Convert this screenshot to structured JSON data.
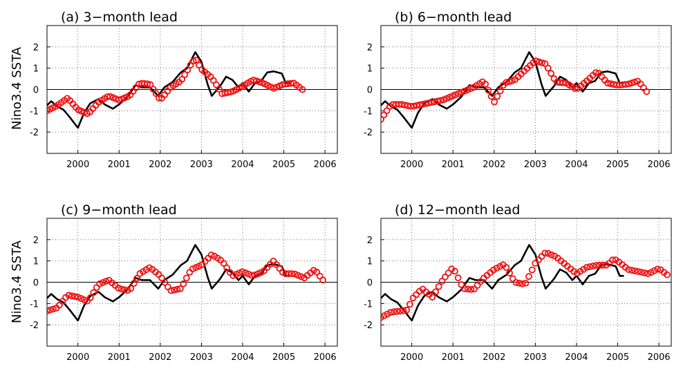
{
  "chart_data": {
    "type": "line",
    "ylabel": "Nino3.4  SSTA",
    "xlim": [
      1999.25,
      2006.3
    ],
    "ylim": [
      -3,
      3
    ],
    "xticks": [
      2000,
      2001,
      2002,
      2003,
      2004,
      2005,
      2006
    ],
    "yticks": [
      -2,
      -1,
      0,
      1,
      2
    ],
    "grid": true,
    "zero_line": true,
    "colors": {
      "observed": "#000000",
      "forecast": "#ee1111"
    },
    "observed": {
      "x": [
        1999.25,
        1999.35,
        1999.5,
        1999.65,
        1999.8,
        2000.0,
        2000.15,
        2000.3,
        2000.5,
        2000.65,
        2000.85,
        2001.0,
        2001.2,
        2001.4,
        2001.55,
        2001.75,
        2001.95,
        2002.1,
        2002.3,
        2002.5,
        2002.65,
        2002.85,
        2003.0,
        2003.15,
        2003.25,
        2003.45,
        2003.6,
        2003.75,
        2003.9,
        2004.0,
        2004.15,
        2004.3,
        2004.45,
        2004.6,
        2004.75,
        2004.95,
        2005.05,
        2005.15
      ],
      "y": [
        -0.75,
        -0.55,
        -0.8,
        -0.95,
        -1.3,
        -1.8,
        -1.1,
        -0.65,
        -0.45,
        -0.7,
        -0.9,
        -0.7,
        -0.35,
        0.2,
        0.1,
        0.1,
        -0.3,
        0.1,
        0.35,
        0.8,
        1.0,
        1.75,
        1.3,
        0.25,
        -0.3,
        0.15,
        0.6,
        0.45,
        0.1,
        0.3,
        -0.1,
        0.3,
        0.4,
        0.8,
        0.85,
        0.75,
        0.3,
        0.3
      ]
    },
    "panels": [
      {
        "title": "(a) 3−month lead",
        "forecast": {
          "x": [
            1999.25,
            1999.5,
            1999.75,
            2000.0,
            2000.25,
            2000.5,
            2000.75,
            2001.0,
            2001.25,
            2001.5,
            2001.75,
            2002.0,
            2002.25,
            2002.5,
            2002.75,
            2002.85,
            2003.0,
            2003.25,
            2003.5,
            2003.75,
            2004.0,
            2004.25,
            2004.5,
            2004.75,
            2005.0,
            2005.25,
            2005.45
          ],
          "y": [
            -1.0,
            -0.75,
            -0.4,
            -0.95,
            -1.15,
            -0.6,
            -0.3,
            -0.5,
            -0.3,
            0.3,
            0.25,
            -0.5,
            0.1,
            0.4,
            1.2,
            1.45,
            0.95,
            0.55,
            -0.2,
            -0.1,
            0.15,
            0.45,
            0.3,
            0.05,
            0.25,
            0.3,
            0.0
          ]
        }
      },
      {
        "title": "(b) 6−month lead",
        "forecast": {
          "x": [
            1999.25,
            1999.5,
            1999.75,
            2000.0,
            2000.25,
            2000.5,
            2000.75,
            2001.0,
            2001.25,
            2001.5,
            2001.75,
            2002.0,
            2002.25,
            2002.5,
            2002.75,
            2003.0,
            2003.25,
            2003.5,
            2003.75,
            2004.0,
            2004.25,
            2004.5,
            2004.75,
            2005.0,
            2005.25,
            2005.5,
            2005.7
          ],
          "y": [
            -1.4,
            -0.7,
            -0.7,
            -0.8,
            -0.7,
            -0.6,
            -0.5,
            -0.3,
            -0.1,
            0.1,
            0.4,
            -0.6,
            0.3,
            0.45,
            0.9,
            1.35,
            1.2,
            0.35,
            0.3,
            0.0,
            0.4,
            0.85,
            0.3,
            0.2,
            0.25,
            0.4,
            -0.1
          ]
        }
      },
      {
        "title": "(c) 9−month lead",
        "forecast": {
          "x": [
            1999.25,
            1999.5,
            1999.75,
            2000.0,
            2000.25,
            2000.5,
            2000.75,
            2001.0,
            2001.25,
            2001.5,
            2001.75,
            2002.0,
            2002.25,
            2002.5,
            2002.75,
            2003.0,
            2003.25,
            2003.5,
            2003.75,
            2004.0,
            2004.25,
            2004.5,
            2004.75,
            2005.0,
            2005.25,
            2005.5,
            2005.75,
            2005.95
          ],
          "y": [
            -1.35,
            -1.2,
            -0.6,
            -0.7,
            -0.9,
            -0.1,
            0.1,
            -0.3,
            -0.4,
            0.4,
            0.7,
            0.3,
            -0.4,
            -0.3,
            0.6,
            0.8,
            1.3,
            1.0,
            0.3,
            0.5,
            0.3,
            0.5,
            1.0,
            0.4,
            0.4,
            0.2,
            0.6,
            0.1
          ]
        }
      },
      {
        "title": "(d) 12−month lead",
        "forecast": {
          "x": [
            1999.25,
            1999.5,
            1999.75,
            1999.9,
            2000.0,
            2000.25,
            2000.5,
            2000.75,
            2001.0,
            2001.25,
            2001.5,
            2001.75,
            2002.0,
            2002.25,
            2002.5,
            2002.75,
            2003.0,
            2003.25,
            2003.5,
            2003.75,
            2004.0,
            2004.25,
            2004.5,
            2004.75,
            2004.9,
            2005.0,
            2005.25,
            2005.5,
            2005.75,
            2006.0,
            2006.2
          ],
          "y": [
            -1.65,
            -1.4,
            -1.35,
            -1.3,
            -0.8,
            -0.3,
            -0.7,
            0.1,
            0.7,
            -0.3,
            -0.35,
            0.2,
            0.6,
            0.85,
            0.0,
            -0.1,
            0.9,
            1.4,
            1.2,
            0.8,
            0.4,
            0.7,
            0.8,
            0.8,
            1.1,
            1.0,
            0.6,
            0.5,
            0.4,
            0.65,
            0.35
          ]
        }
      }
    ]
  }
}
